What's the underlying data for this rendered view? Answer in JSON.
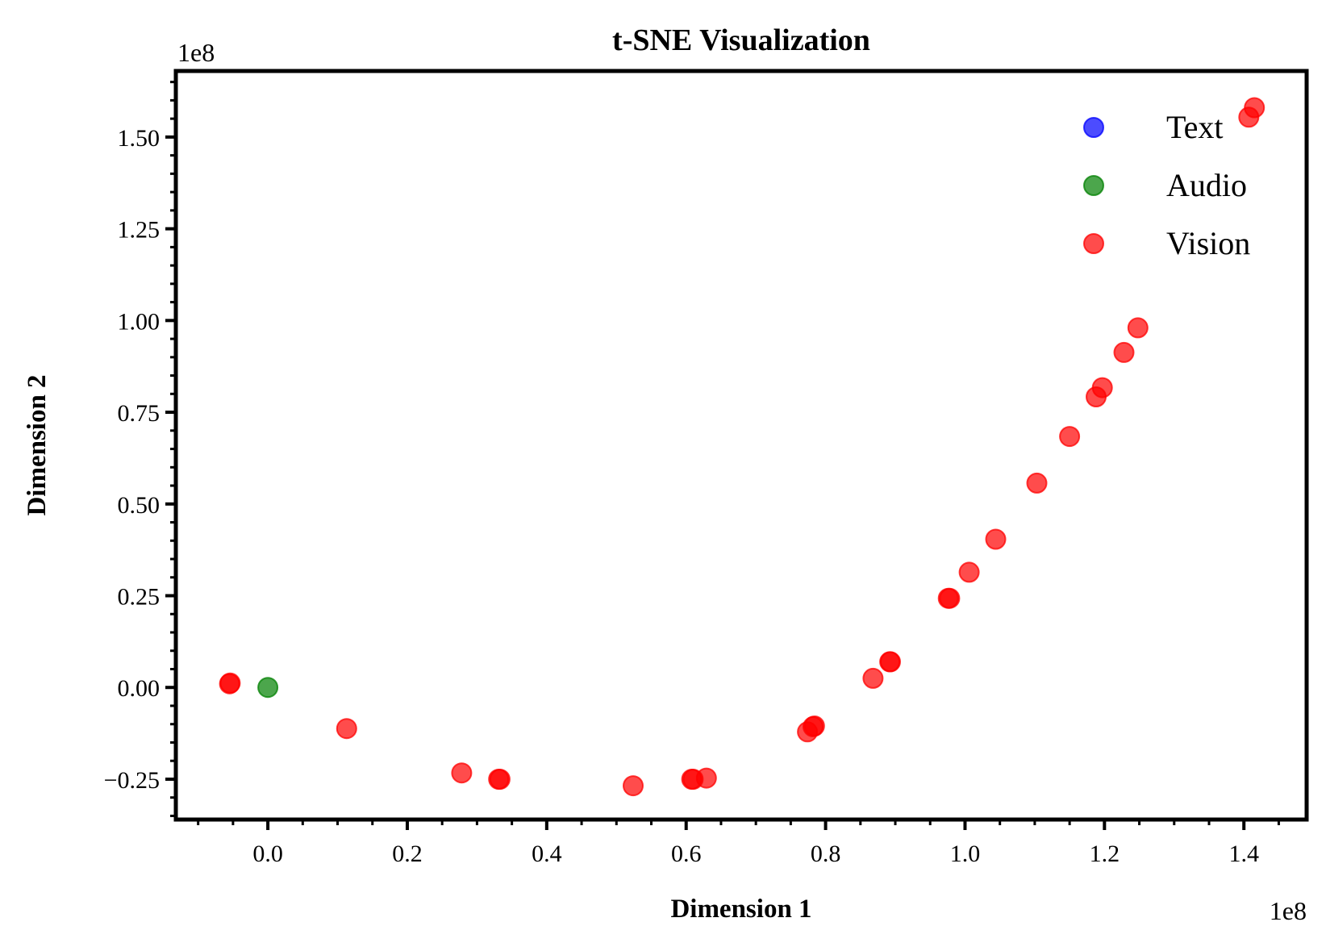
{
  "chart_data": {
    "type": "scatter",
    "title": "t-SNE Visualization",
    "xlabel": "Dimension 1",
    "ylabel": "Dimension 2",
    "x_offset_label": "1e8",
    "y_offset_label": "1e8",
    "xlim": [
      -0.132,
      1.49
    ],
    "ylim": [
      -0.36,
      1.68
    ],
    "xticks": [
      0.0,
      0.2,
      0.4,
      0.6,
      0.8,
      1.0,
      1.2,
      1.4
    ],
    "xtick_labels": [
      "0.0",
      "0.2",
      "0.4",
      "0.6",
      "0.8",
      "1.0",
      "1.2",
      "1.4"
    ],
    "yticks": [
      -0.25,
      0.0,
      0.25,
      0.5,
      0.75,
      1.0,
      1.25,
      1.5
    ],
    "ytick_labels": [
      "−0.25",
      "0.00",
      "0.25",
      "0.50",
      "0.75",
      "1.00",
      "1.25",
      "1.50"
    ],
    "grid": false,
    "legend_position": "top-right",
    "series": [
      {
        "name": "Text",
        "color": "#0000ff",
        "points": []
      },
      {
        "name": "Audio",
        "color": "#008000",
        "points": [
          [
            0.0,
            0.0
          ]
        ]
      },
      {
        "name": "Vision",
        "color": "#ff0000",
        "points": [
          [
            -0.055,
            0.01
          ],
          [
            -0.054,
            0.012
          ],
          [
            0.113,
            -0.112
          ],
          [
            0.278,
            -0.233
          ],
          [
            0.331,
            -0.25
          ],
          [
            0.333,
            -0.25
          ],
          [
            0.524,
            -0.268
          ],
          [
            0.608,
            -0.25
          ],
          [
            0.61,
            -0.25
          ],
          [
            0.629,
            -0.247
          ],
          [
            0.774,
            -0.121
          ],
          [
            0.782,
            -0.107
          ],
          [
            0.784,
            -0.105
          ],
          [
            0.868,
            0.025
          ],
          [
            0.892,
            0.07
          ],
          [
            0.893,
            0.07
          ],
          [
            0.976,
            0.243
          ],
          [
            0.978,
            0.243
          ],
          [
            1.006,
            0.314
          ],
          [
            1.044,
            0.404
          ],
          [
            1.103,
            0.557
          ],
          [
            1.15,
            0.684
          ],
          [
            1.188,
            0.792
          ],
          [
            1.197,
            0.817
          ],
          [
            1.228,
            0.913
          ],
          [
            1.248,
            0.98
          ],
          [
            1.407,
            1.554
          ],
          [
            1.415,
            1.58
          ]
        ]
      }
    ]
  }
}
